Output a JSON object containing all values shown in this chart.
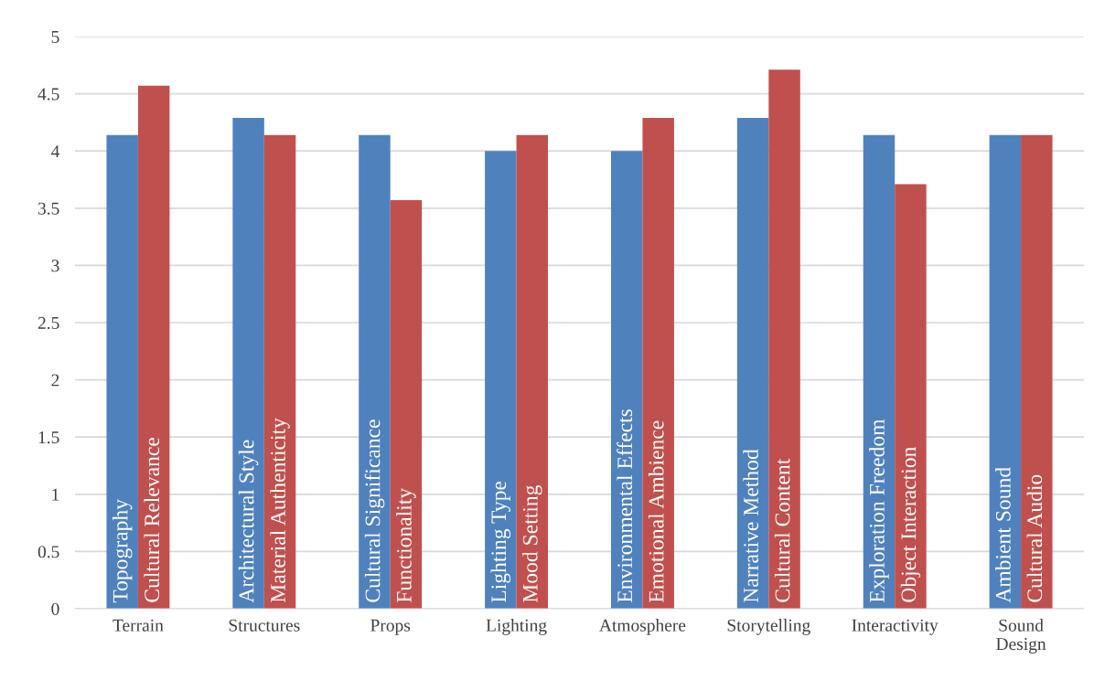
{
  "chart_data": {
    "type": "bar",
    "categories": [
      "Terrain",
      "Structures",
      "Props",
      "Lighting",
      "Atmosphere",
      "Storytelling",
      "Interactivity",
      "Sound Design"
    ],
    "series": [
      {
        "color": "#4f81bd",
        "values": [
          4.14,
          4.29,
          4.14,
          4.0,
          4.0,
          4.29,
          4.14,
          4.14
        ],
        "value_labels": [
          "Topography",
          "Architectural Style",
          "Cultural Significance",
          "Lighting Type",
          "Environmental Effects",
          "Narrative Method",
          "Exploration Freedom",
          "Ambient Sound"
        ]
      },
      {
        "color": "#c0504d",
        "values": [
          4.57,
          4.14,
          3.57,
          4.14,
          4.29,
          4.71,
          3.71,
          4.14
        ],
        "value_labels": [
          "Cultural Relevance",
          "Material Authenticity",
          "Functionality",
          "Mood Setting",
          "Emotional Ambience",
          "Cultural Content",
          "Object Interaction",
          "Cultural Audio"
        ]
      }
    ],
    "ylim": [
      0,
      5
    ],
    "yticks": [
      0,
      0.5,
      1,
      1.5,
      2,
      2.5,
      3,
      3.5,
      4,
      4.5,
      5
    ],
    "grid": "y"
  }
}
